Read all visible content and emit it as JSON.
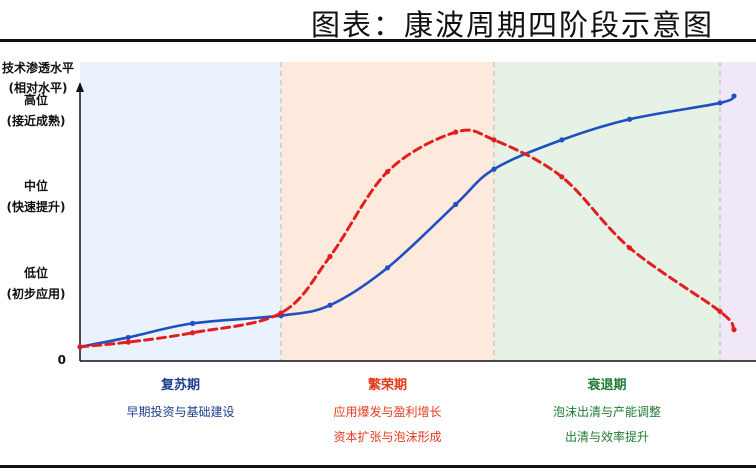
{
  "title": "图表：康波周期四阶段示意图",
  "colors": {
    "tech_line": "#1f4fc1",
    "demand_line": "#e21f1f",
    "recovery_bg": "#eaf3fd",
    "prosperity_bg": "#fdeadd",
    "recession_bg": "#e6f2e6",
    "depression_bg": "#f0e8f7",
    "recovery_text": "#1d3f8f",
    "prosperity_text": "#e33a1c",
    "recession_text": "#1f7a33"
  },
  "chart_data": {
    "type": "line",
    "ylabel": [
      "技术渗透水平",
      "(相对水平)"
    ],
    "yticks": [
      {
        "value": 0,
        "lines": [
          "0"
        ]
      },
      {
        "value": 1,
        "lines": [
          "低位",
          "(初步应用)"
        ]
      },
      {
        "value": 2,
        "lines": [
          "中位",
          "(快速提升)"
        ]
      },
      {
        "value": 3,
        "lines": [
          "高位",
          "(接近成熟)"
        ]
      }
    ],
    "ylim": [
      0,
      4
    ],
    "xlim": [
      0,
      4
    ],
    "phases": [
      {
        "name": "复苏期",
        "start": 0,
        "end": 1,
        "desc": [
          "早期投资与基础建设"
        ]
      },
      {
        "name": "繁荣期",
        "start": 1,
        "end": 2,
        "desc": [
          "应用爆发与盈利增长",
          "资本扩张与泡沫形成"
        ]
      },
      {
        "name": "衰退期",
        "start": 2,
        "end": 3,
        "desc": [
          "泡沫出清与产能调整",
          "出清与效率提升"
        ]
      },
      {
        "name": "",
        "start": 3,
        "end": 4,
        "desc": []
      }
    ],
    "series": [
      {
        "style": "solid",
        "points": [
          [
            0.0,
            0.1
          ],
          [
            0.24,
            0.28
          ],
          [
            0.56,
            0.55
          ],
          [
            1.0,
            0.7
          ],
          [
            1.23,
            0.9
          ],
          [
            1.5,
            1.37
          ],
          [
            1.82,
            2.1
          ],
          [
            2.0,
            2.51
          ],
          [
            2.3,
            2.85
          ],
          [
            2.6,
            3.09
          ],
          [
            3.0,
            3.28
          ],
          [
            3.35,
            3.36
          ]
        ]
      },
      {
        "style": "dashed",
        "points": [
          [
            0.0,
            0.1
          ],
          [
            0.24,
            0.19
          ],
          [
            0.56,
            0.37
          ],
          [
            1.0,
            0.75
          ],
          [
            1.23,
            1.5
          ],
          [
            1.5,
            2.48
          ],
          [
            1.82,
            2.94
          ],
          [
            2.0,
            2.85
          ],
          [
            2.3,
            2.42
          ],
          [
            2.6,
            1.6
          ],
          [
            3.0,
            0.78
          ],
          [
            3.35,
            0.43
          ]
        ]
      }
    ]
  }
}
